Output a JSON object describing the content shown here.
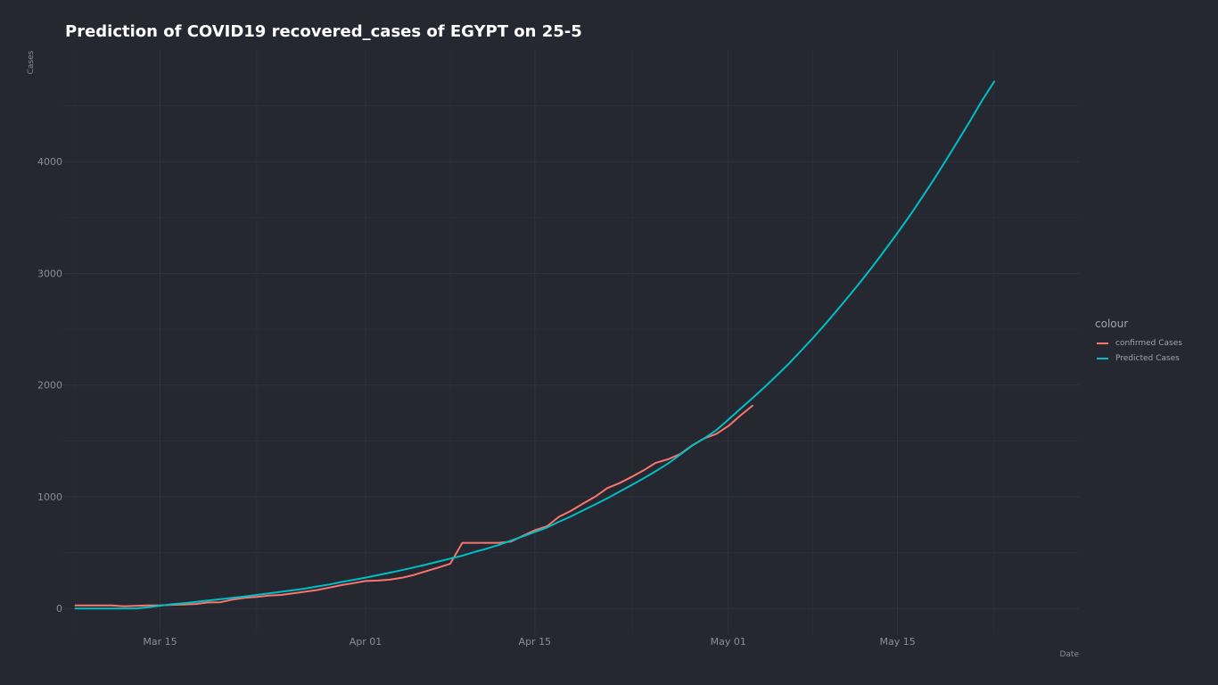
{
  "chart_data": {
    "type": "line",
    "title": "Prediction of COVID19 recovered_cases of EGYPT on 25-5",
    "xlabel": "Date",
    "ylabel": "Cases",
    "x_start_date": "2020-03-08",
    "x_range_dates": [
      "2020-03-07",
      "2020-05-30"
    ],
    "ylim": [
      -230,
      5000
    ],
    "x_ticks": [
      {
        "date": "2020-03-15",
        "label": "Mar 15"
      },
      {
        "date": "2020-04-01",
        "label": "Apr 01"
      },
      {
        "date": "2020-04-15",
        "label": "Apr 15"
      },
      {
        "date": "2020-05-01",
        "label": "May 01"
      },
      {
        "date": "2020-05-15",
        "label": "May 15"
      }
    ],
    "x_minor_dates": [
      "2020-03-08",
      "2020-03-23",
      "2020-04-08",
      "2020-04-23",
      "2020-05-08",
      "2020-05-23"
    ],
    "y_ticks": [
      0,
      1000,
      2000,
      3000,
      4000
    ],
    "y_minor": [
      500,
      1500,
      2500,
      3500,
      4500
    ],
    "grid": true,
    "legend_title": "colour",
    "legend_position": "right",
    "series": [
      {
        "name": "confirmed Cases",
        "color": "#f8766d",
        "values": [
          27,
          27,
          27,
          27,
          20,
          24,
          28,
          27,
          33,
          35,
          41,
          54,
          56,
          80,
          95,
          104,
          116,
          121,
          136,
          150,
          165,
          187,
          209,
          227,
          246,
          250,
          258,
          275,
          300,
          334,
          366,
          400,
          588,
          588,
          588,
          588,
          598,
          650,
          700,
          735,
          821,
          875,
          940,
          1001,
          1078,
          1122,
          1178,
          1237,
          1304,
          1335,
          1381,
          1459,
          1523,
          1562,
          1633,
          1727,
          1815
        ]
      },
      {
        "name": "Predicted Cases",
        "color": "#00bfc4",
        "values": [
          0,
          0,
          0,
          0,
          0,
          0,
          10,
          25,
          38,
          47,
          60,
          72,
          83,
          95,
          107,
          121,
          135,
          149,
          163,
          178,
          197,
          215,
          237,
          256,
          276,
          298,
          320,
          343,
          367,
          393,
          420,
          446,
          473,
          505,
          535,
          568,
          607,
          645,
          685,
          724,
          776,
          825,
          879,
          932,
          987,
          1045,
          1104,
          1166,
          1229,
          1297,
          1375,
          1456,
          1522,
          1595,
          1690,
          1787,
          1883,
          1982,
          2085,
          2190,
          2305,
          2421,
          2543,
          2670,
          2800,
          2932,
          3071,
          3215,
          3362,
          3515,
          3675,
          3840,
          4011,
          4187,
          4365,
          4549,
          4718
        ]
      }
    ]
  }
}
